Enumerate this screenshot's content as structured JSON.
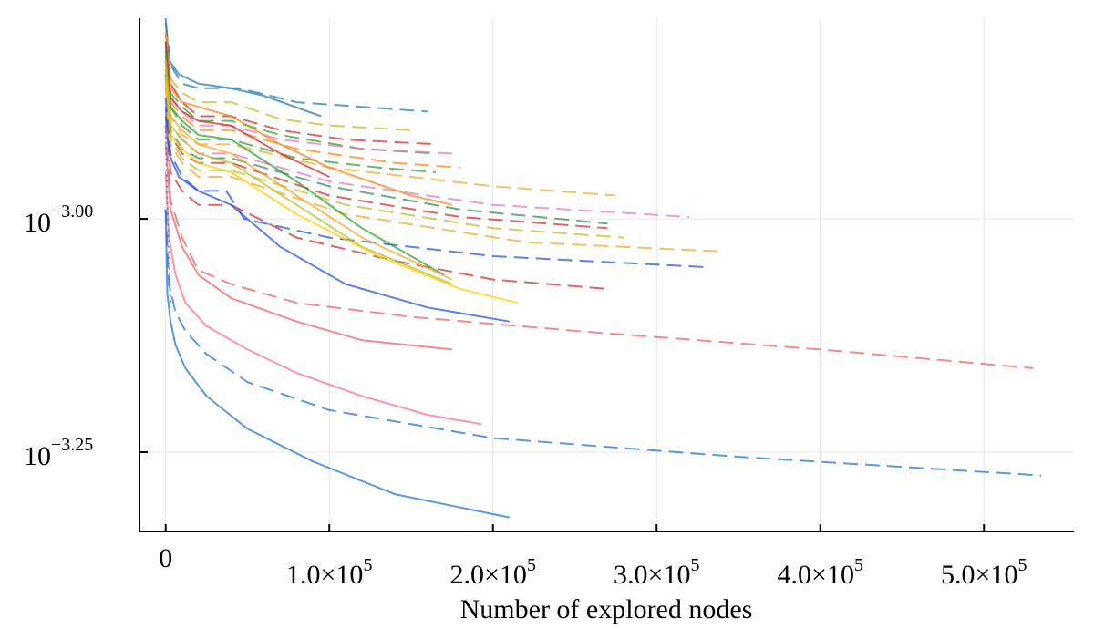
{
  "chart_data": {
    "type": "line",
    "title": "",
    "xlabel": "Number of explored nodes",
    "ylabel": "",
    "yscale": "log10",
    "xlim": [
      -16000,
      555000
    ],
    "ylim_log10": [
      -3.335,
      -2.785
    ],
    "grid": true,
    "legend": "none",
    "x_ticks": [
      {
        "value": 0,
        "mantissa": "0",
        "exponent": ""
      },
      {
        "value": 100000,
        "mantissa": "1.0×10",
        "exponent": "5"
      },
      {
        "value": 200000,
        "mantissa": "2.0×10",
        "exponent": "5"
      },
      {
        "value": 300000,
        "mantissa": "3.0×10",
        "exponent": "5"
      },
      {
        "value": 400000,
        "mantissa": "4.0×10",
        "exponent": "5"
      },
      {
        "value": 500000,
        "mantissa": "5.0×10",
        "exponent": "5"
      }
    ],
    "y_ticks": [
      {
        "log10": -3.0,
        "base": "10",
        "exponent": "−3.00"
      },
      {
        "log10": -3.25,
        "base": "10",
        "exponent": "−3.25"
      }
    ],
    "series": [
      {
        "color": "#1f77b4",
        "style": "solid",
        "x": [
          0,
          2000,
          8000,
          20000,
          40000,
          60000,
          95000
        ],
        "y_log10": [
          -2.785,
          -2.83,
          -2.845,
          -2.855,
          -2.86,
          -2.868,
          -2.89
        ]
      },
      {
        "color": "#1f77b4",
        "style": "dashed",
        "x": [
          0,
          3000,
          10000,
          20000,
          45000,
          80000,
          120000,
          160000
        ],
        "y_log10": [
          -2.79,
          -2.835,
          -2.855,
          -2.86,
          -2.86,
          -2.875,
          -2.88,
          -2.885
        ]
      },
      {
        "color": "#bcbd22",
        "style": "dashed",
        "x": [
          0,
          3000,
          10000,
          20000,
          40000,
          70000,
          100000,
          150000
        ],
        "y_log10": [
          -2.8,
          -2.85,
          -2.865,
          -2.875,
          -2.875,
          -2.893,
          -2.9,
          -2.905
        ]
      },
      {
        "color": "#d62728",
        "style": "dashed",
        "x": [
          0,
          3000,
          10000,
          20000,
          40000,
          70000,
          110000,
          165000
        ],
        "y_log10": [
          -2.81,
          -2.855,
          -2.875,
          -2.89,
          -2.89,
          -2.905,
          -2.915,
          -2.92
        ]
      },
      {
        "color": "#2ca02c",
        "style": "dashed",
        "x": [
          0,
          3000,
          10000,
          20000,
          40000,
          70000,
          120000,
          165000
        ],
        "y_log10": [
          -2.815,
          -2.865,
          -2.88,
          -2.895,
          -2.895,
          -2.91,
          -2.925,
          -2.93
        ]
      },
      {
        "color": "#e377c2",
        "style": "dashed",
        "x": [
          0,
          3000,
          10000,
          20000,
          40000,
          70000,
          120000,
          175000
        ],
        "y_log10": [
          -2.82,
          -2.87,
          -2.885,
          -2.9,
          -2.9,
          -2.915,
          -2.925,
          -2.93
        ]
      },
      {
        "color": "#ff7f0e",
        "style": "dashed",
        "x": [
          0,
          3000,
          10000,
          20000,
          40000,
          80000,
          140000,
          180000
        ],
        "y_log10": [
          -2.825,
          -2.875,
          -2.89,
          -2.905,
          -2.905,
          -2.925,
          -2.94,
          -2.945
        ]
      },
      {
        "color": "#2ca02c",
        "style": "dashed",
        "x": [
          0,
          3000,
          10000,
          20000,
          40000,
          80000,
          130000,
          165000
        ],
        "y_log10": [
          -2.83,
          -2.88,
          -2.9,
          -2.915,
          -2.915,
          -2.935,
          -2.945,
          -2.95
        ]
      },
      {
        "color": "#f5a623",
        "style": "dashed",
        "x": [
          0,
          3000,
          10000,
          20000,
          40000,
          100000,
          200000,
          275000
        ],
        "y_log10": [
          -2.835,
          -2.89,
          -2.91,
          -2.92,
          -2.92,
          -2.945,
          -2.965,
          -2.975
        ]
      },
      {
        "color": "#e377c2",
        "style": "dashed",
        "x": [
          0,
          3000,
          10000,
          20000,
          40000,
          100000,
          200000,
          320000
        ],
        "y_log10": [
          -2.84,
          -2.9,
          -2.915,
          -2.93,
          -2.93,
          -2.96,
          -2.985,
          -2.998
        ]
      },
      {
        "color": "#2e8b57",
        "style": "dashed",
        "x": [
          0,
          3000,
          10000,
          20000,
          40000,
          100000,
          180000,
          270000
        ],
        "y_log10": [
          -2.845,
          -2.905,
          -2.925,
          -2.935,
          -2.935,
          -2.965,
          -2.99,
          -3.005
        ]
      },
      {
        "color": "#d62728",
        "style": "dashed",
        "x": [
          0,
          3000,
          10000,
          20000,
          40000,
          100000,
          180000,
          270000
        ],
        "y_log10": [
          -2.85,
          -2.91,
          -2.93,
          -2.94,
          -2.94,
          -2.975,
          -2.998,
          -3.01
        ]
      },
      {
        "color": "#bcbd22",
        "style": "dashed",
        "x": [
          0,
          3000,
          10000,
          20000,
          40000,
          110000,
          200000,
          280000
        ],
        "y_log10": [
          -2.855,
          -2.915,
          -2.935,
          -2.948,
          -2.948,
          -2.985,
          -3.01,
          -3.02
        ]
      },
      {
        "color": "#f5a623",
        "style": "dashed",
        "x": [
          0,
          3000,
          10000,
          20000,
          40000,
          110000,
          220000,
          340000
        ],
        "y_log10": [
          -2.86,
          -2.92,
          -2.94,
          -2.955,
          -2.955,
          -2.995,
          -3.025,
          -3.035
        ]
      },
      {
        "color": "#1f4fe0",
        "style": "dashed",
        "x": [
          0,
          3000,
          10000,
          20000,
          37000,
          48000,
          100000,
          200000,
          333000
        ],
        "y_log10": [
          -2.87,
          -2.93,
          -2.955,
          -2.97,
          -2.97,
          -3.0,
          -3.02,
          -3.04,
          -3.052
        ]
      },
      {
        "color": "#d62728",
        "style": "dashed",
        "x": [
          0,
          3000,
          10000,
          20000,
          40000,
          80000,
          140000,
          200000,
          270000
        ],
        "y_log10": [
          -2.89,
          -2.95,
          -2.97,
          -2.985,
          -2.985,
          -3.02,
          -3.045,
          -3.065,
          -3.075
        ]
      },
      {
        "color": "#ff7f0e",
        "style": "solid",
        "x": [
          0,
          3000,
          10000,
          20000,
          40000,
          70000,
          100000,
          150000,
          175000
        ],
        "y_log10": [
          -2.8,
          -2.86,
          -2.875,
          -2.88,
          -2.89,
          -2.92,
          -2.945,
          -2.975,
          -2.985
        ]
      },
      {
        "color": "#d62728",
        "style": "solid",
        "x": [
          0,
          3000,
          10000,
          20000,
          40000,
          70000,
          100000
        ],
        "y_log10": [
          -2.81,
          -2.87,
          -2.885,
          -2.895,
          -2.9,
          -2.93,
          -2.955
        ]
      },
      {
        "color": "#2ca02c",
        "style": "solid",
        "x": [
          0,
          3000,
          10000,
          20000,
          40000,
          80000,
          120000,
          170000
        ],
        "y_log10": [
          -2.82,
          -2.88,
          -2.895,
          -2.91,
          -2.915,
          -2.96,
          -3.01,
          -3.06
        ]
      },
      {
        "color": "#f5a623",
        "style": "solid",
        "x": [
          0,
          3000,
          10000,
          20000,
          40000,
          80000,
          120000,
          175000
        ],
        "y_log10": [
          -2.83,
          -2.89,
          -2.905,
          -2.92,
          -2.93,
          -2.975,
          -3.02,
          -3.065
        ]
      },
      {
        "color": "#bcbd22",
        "style": "solid",
        "x": [
          0,
          3000,
          10000,
          20000,
          40000,
          80000,
          120000,
          175000
        ],
        "y_log10": [
          -2.84,
          -2.9,
          -2.915,
          -2.93,
          -2.94,
          -2.985,
          -3.03,
          -3.07
        ]
      },
      {
        "color": "#ffcc00",
        "style": "solid",
        "x": [
          0,
          3000,
          10000,
          20000,
          40000,
          80000,
          130000,
          180000,
          215000
        ],
        "y_log10": [
          -2.85,
          -2.91,
          -2.925,
          -2.94,
          -2.95,
          -2.995,
          -3.04,
          -3.075,
          -3.09
        ]
      },
      {
        "color": "#1f4fe0",
        "style": "solid",
        "x": [
          0,
          2000,
          8000,
          20000,
          40000,
          70000,
          110000,
          160000,
          210000
        ],
        "y_log10": [
          -2.88,
          -2.93,
          -2.955,
          -2.97,
          -2.985,
          -3.03,
          -3.07,
          -3.095,
          -3.11
        ]
      },
      {
        "color": "#f25c5c",
        "style": "dashed",
        "x": [
          0,
          3000,
          10000,
          20000,
          40000,
          80000,
          150000,
          250000,
          400000,
          530000
        ],
        "y_log10": [
          -2.9,
          -2.98,
          -3.02,
          -3.055,
          -3.07,
          -3.09,
          -3.105,
          -3.12,
          -3.14,
          -3.16
        ]
      },
      {
        "color": "#f25c5c",
        "style": "solid",
        "x": [
          0,
          3000,
          10000,
          20000,
          40000,
          80000,
          120000,
          175000
        ],
        "y_log10": [
          -2.92,
          -2.99,
          -3.03,
          -3.06,
          -3.085,
          -3.11,
          -3.13,
          -3.14
        ]
      },
      {
        "color": "#ff6b81",
        "style": "solid",
        "x": [
          0,
          2000,
          6000,
          12000,
          25000,
          50000,
          80000,
          120000,
          160000,
          193000
        ],
        "y_log10": [
          -2.95,
          -3.02,
          -3.06,
          -3.09,
          -3.115,
          -3.14,
          -3.165,
          -3.19,
          -3.21,
          -3.22
        ]
      },
      {
        "color": "#1f6fd8",
        "style": "dashed",
        "x": [
          0,
          2000,
          6000,
          12000,
          25000,
          50000,
          100000,
          200000,
          350000,
          535000
        ],
        "y_log10": [
          -2.99,
          -3.07,
          -3.1,
          -3.12,
          -3.145,
          -3.175,
          -3.205,
          -3.235,
          -3.255,
          -3.275
        ]
      },
      {
        "color": "#1f6fd8",
        "style": "solid",
        "x": [
          0,
          1000,
          3000,
          6000,
          12000,
          25000,
          50000,
          90000,
          140000,
          210000
        ],
        "y_log10": [
          -2.99,
          -3.08,
          -3.11,
          -3.135,
          -3.16,
          -3.19,
          -3.225,
          -3.26,
          -3.295,
          -3.32
        ]
      },
      {
        "color": "#1f6fd8",
        "style": "dotted",
        "x": [
          0,
          1000,
          2000,
          3000
        ],
        "y_log10": [
          -2.9,
          -2.98,
          -3.04,
          -3.09
        ]
      }
    ]
  }
}
